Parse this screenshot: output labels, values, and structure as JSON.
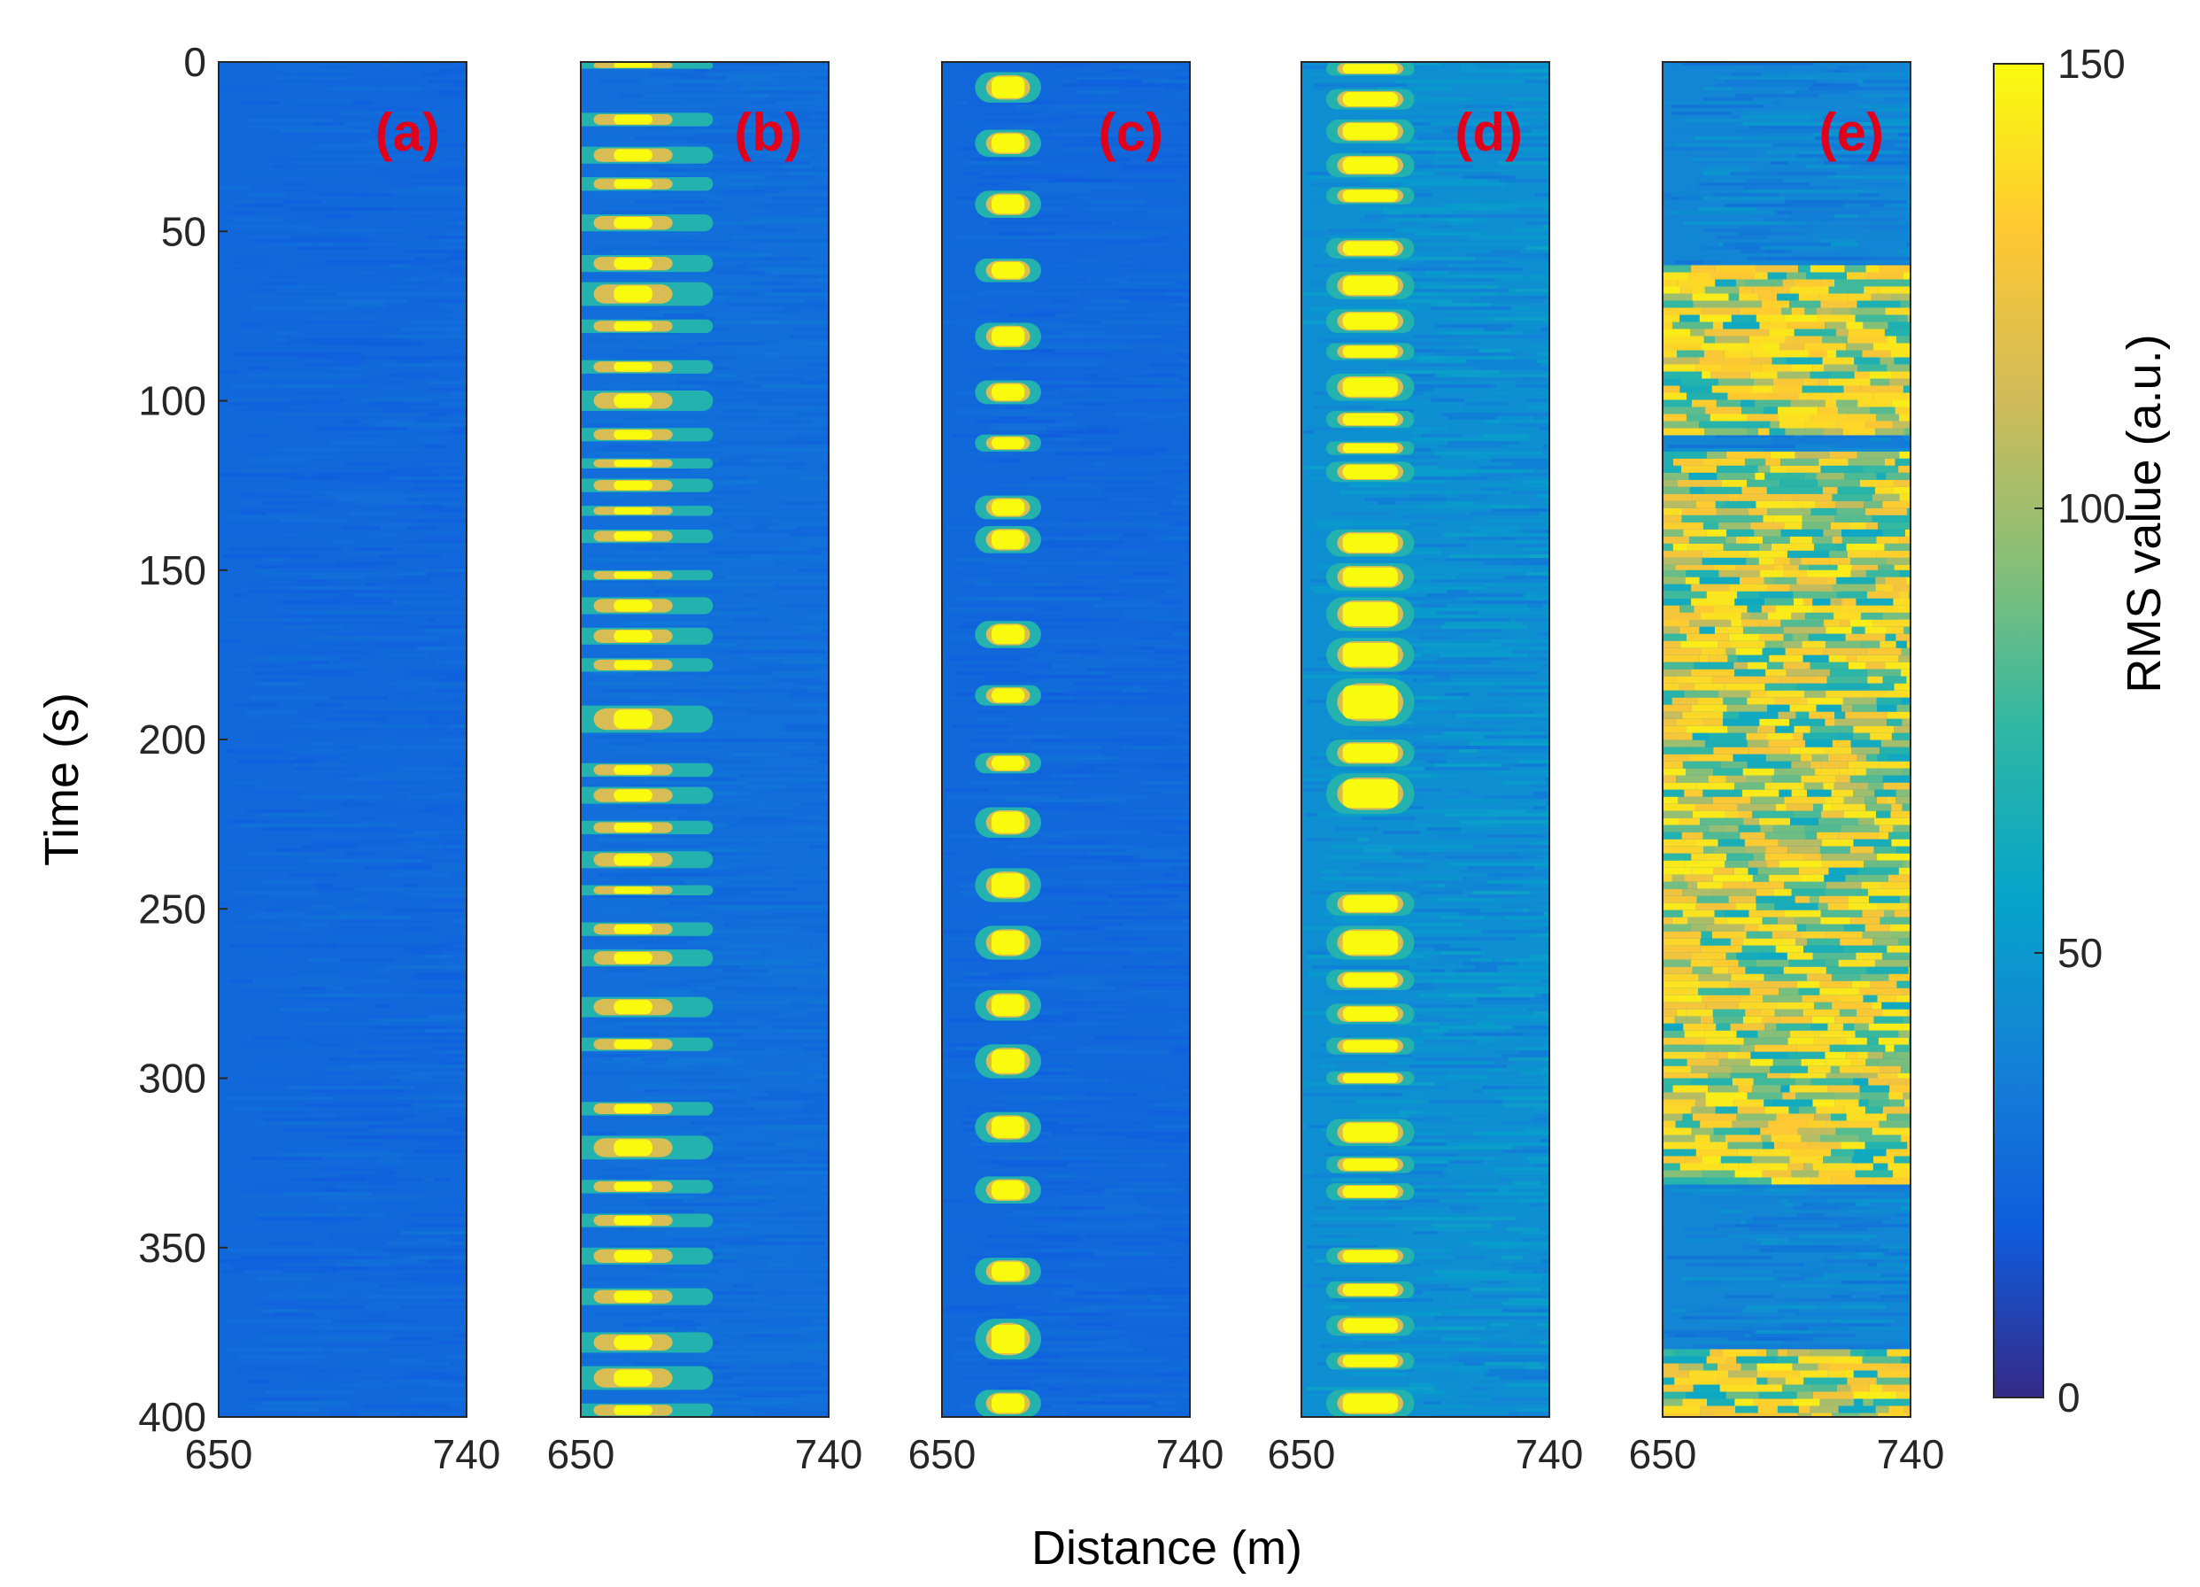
{
  "chart_data": {
    "type": "heatmap",
    "xlabel": "Distance (m)",
    "ylabel": "Time (s)",
    "xlim": [
      650,
      740
    ],
    "ylim": [
      400,
      0
    ],
    "x_ticks": [
      "650",
      "740"
    ],
    "y_ticks": [
      "0",
      "50",
      "100",
      "150",
      "200",
      "250",
      "300",
      "350",
      "400"
    ],
    "y_tick_values": [
      0,
      50,
      100,
      150,
      200,
      250,
      300,
      350,
      400
    ],
    "colorbar": {
      "label": "RMS value (a.u.)",
      "range": [
        0,
        150
      ],
      "ticks": [
        "0",
        "50",
        "100",
        "150"
      ],
      "tick_values": [
        0,
        50,
        100,
        150
      ],
      "colormap": "parula",
      "colors": [
        "#352a87",
        "#0f5cdd",
        "#1481d6",
        "#06a4ca",
        "#2eb7a4",
        "#87bf77",
        "#d1bb59",
        "#fec832",
        "#f9fb0e"
      ]
    },
    "panels": [
      {
        "label": "(a)",
        "background_level": 25,
        "activity_x_range": [
          650,
          740
        ],
        "active_segments": [],
        "description_level": "uniform low"
      },
      {
        "label": "(b)",
        "background_level": 28,
        "activity_x_range": [
          662,
          676
        ],
        "active_segments": [
          [
            0,
            2
          ],
          [
            15,
            19
          ],
          [
            25,
            30
          ],
          [
            34,
            38
          ],
          [
            45,
            50
          ],
          [
            57,
            62
          ],
          [
            65,
            72
          ],
          [
            76,
            80
          ],
          [
            88,
            92
          ],
          [
            97,
            103
          ],
          [
            108,
            112
          ],
          [
            117,
            120
          ],
          [
            123,
            127
          ],
          [
            131,
            134
          ],
          [
            138,
            142
          ],
          [
            150,
            153
          ],
          [
            158,
            163
          ],
          [
            167,
            172
          ],
          [
            176,
            180
          ],
          [
            190,
            198
          ],
          [
            207,
            211
          ],
          [
            214,
            219
          ],
          [
            224,
            228
          ],
          [
            233,
            238
          ],
          [
            243,
            246
          ],
          [
            254,
            258
          ],
          [
            262,
            267
          ],
          [
            276,
            282
          ],
          [
            288,
            292
          ],
          [
            307,
            311
          ],
          [
            317,
            324
          ],
          [
            330,
            334
          ],
          [
            340,
            344
          ],
          [
            350,
            355
          ],
          [
            362,
            367
          ],
          [
            375,
            381
          ],
          [
            385,
            392
          ],
          [
            396,
            400
          ]
        ],
        "peak_level": 150
      },
      {
        "label": "(c)",
        "background_level": 25,
        "activity_x_range": [
          668,
          680
        ],
        "active_segments": [
          [
            3,
            12
          ],
          [
            20,
            28
          ],
          [
            38,
            46
          ],
          [
            58,
            65
          ],
          [
            77,
            85
          ],
          [
            94,
            101
          ],
          [
            110,
            115
          ],
          [
            128,
            135
          ],
          [
            137,
            145
          ],
          [
            165,
            173
          ],
          [
            184,
            190
          ],
          [
            204,
            210
          ],
          [
            220,
            229
          ],
          [
            238,
            248
          ],
          [
            255,
            265
          ],
          [
            274,
            283
          ],
          [
            290,
            300
          ],
          [
            310,
            319
          ],
          [
            329,
            337
          ],
          [
            353,
            361
          ],
          [
            371,
            383
          ],
          [
            392,
            400
          ]
        ],
        "peak_level": 150
      },
      {
        "label": "(d)",
        "background_level": 45,
        "activity_x_range": [
          665,
          685
        ],
        "active_segments": [
          [
            0,
            4
          ],
          [
            8,
            14
          ],
          [
            17,
            24
          ],
          [
            27,
            34
          ],
          [
            37,
            42
          ],
          [
            52,
            58
          ],
          [
            62,
            70
          ],
          [
            73,
            80
          ],
          [
            83,
            88
          ],
          [
            92,
            100
          ],
          [
            103,
            108
          ],
          [
            112,
            116
          ],
          [
            118,
            124
          ],
          [
            138,
            146
          ],
          [
            148,
            156
          ],
          [
            158,
            168
          ],
          [
            170,
            180
          ],
          [
            182,
            196
          ],
          [
            200,
            208
          ],
          [
            210,
            222
          ],
          [
            245,
            252
          ],
          [
            255,
            265
          ],
          [
            268,
            274
          ],
          [
            278,
            284
          ],
          [
            288,
            293
          ],
          [
            298,
            302
          ],
          [
            312,
            320
          ],
          [
            323,
            328
          ],
          [
            331,
            336
          ],
          [
            350,
            355
          ],
          [
            360,
            365
          ],
          [
            370,
            376
          ],
          [
            381,
            386
          ],
          [
            392,
            400
          ]
        ],
        "peak_level": 150
      },
      {
        "label": "(e)",
        "background_level": 40,
        "activity_x_range": [
          650,
          740
        ],
        "active_segments": [
          [
            60,
            110
          ],
          [
            115,
            165
          ],
          [
            150,
            300
          ],
          [
            300,
            330
          ],
          [
            380,
            400
          ]
        ],
        "peak_level": 145
      }
    ]
  }
}
